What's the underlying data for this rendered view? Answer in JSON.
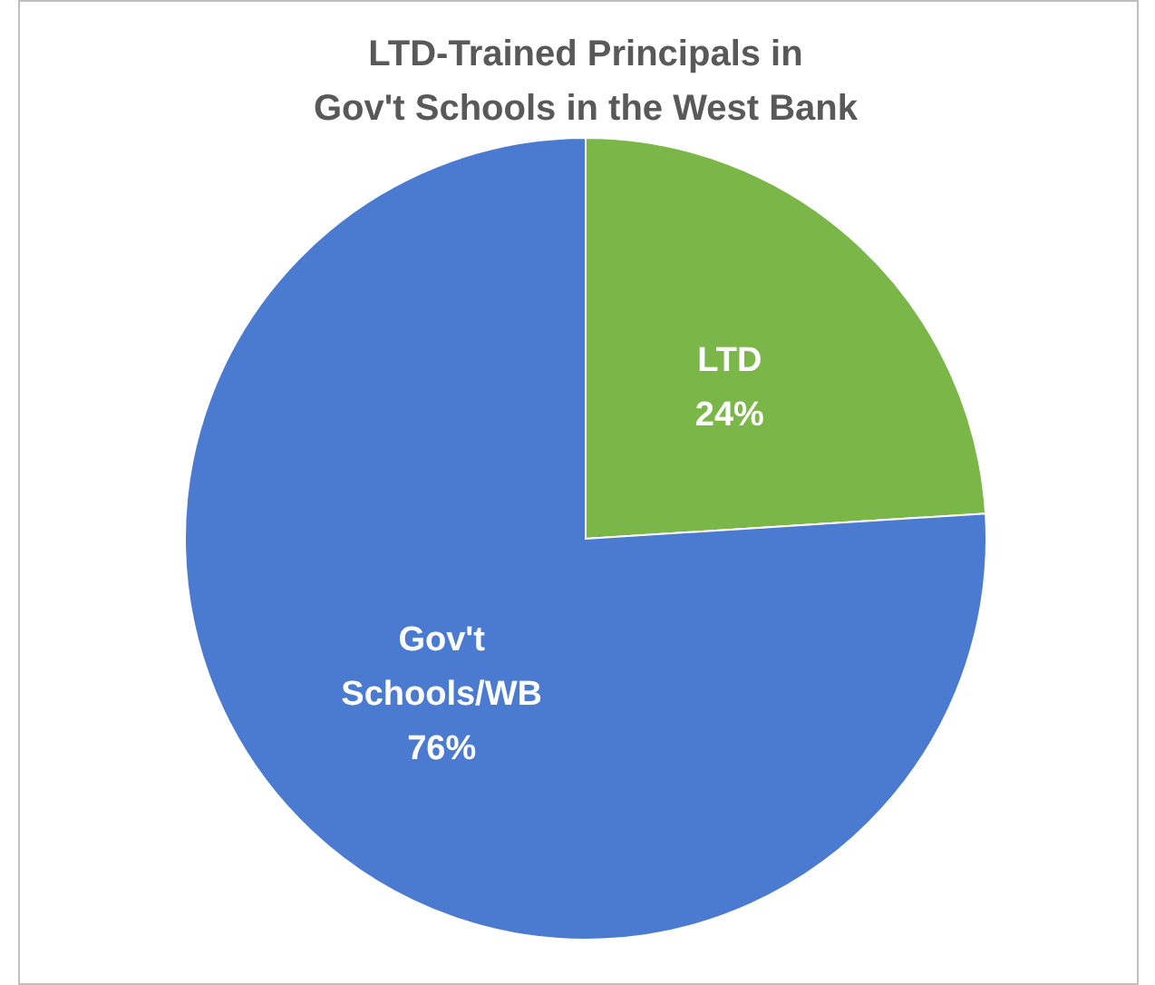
{
  "chart_data": {
    "type": "pie",
    "title": "LTD-Trained Principals in Gov't Schools in the West Bank",
    "categories": [
      "LTD",
      "Gov't Schools/WB"
    ],
    "values": [
      24,
      76
    ],
    "colors": [
      "#7ab648",
      "#4a7bd0"
    ],
    "data_labels": true,
    "value_labels": [
      "24%",
      "76%"
    ]
  }
}
